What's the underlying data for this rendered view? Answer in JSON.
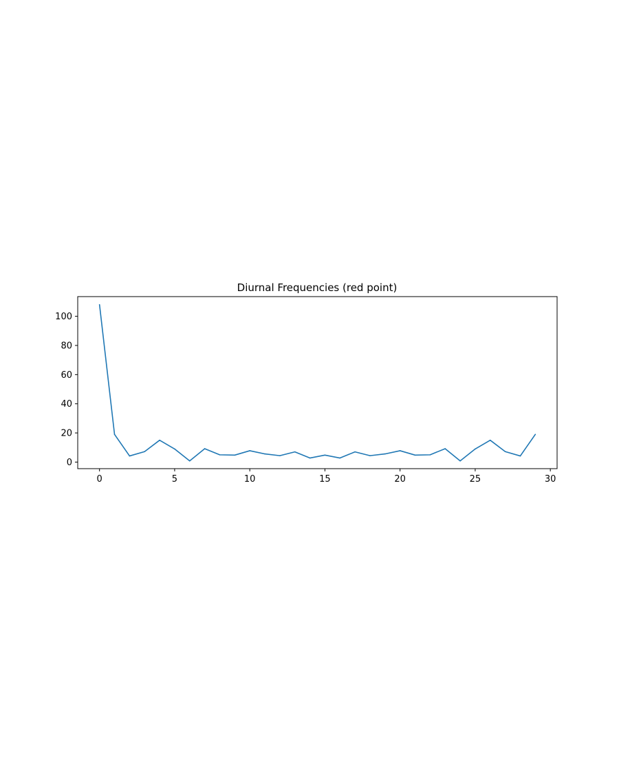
{
  "chart_data": {
    "type": "line",
    "title": "Diurnal Frequencies (red point)",
    "xlabel": "",
    "ylabel": "",
    "xlim": [
      -1.45,
      30.45
    ],
    "ylim": [
      -4.5,
      113.5
    ],
    "xticks": [
      0,
      5,
      10,
      15,
      20,
      25,
      30
    ],
    "yticks": [
      0,
      20,
      40,
      60,
      80,
      100
    ],
    "grid": false,
    "legend": "none",
    "series": [
      {
        "color": "#1f77b4",
        "x": [
          0,
          1,
          2,
          3,
          4,
          5,
          6,
          7,
          8,
          9,
          10,
          11,
          12,
          13,
          14,
          15,
          16,
          17,
          18,
          19,
          20,
          21,
          22,
          23,
          24,
          25,
          26,
          27,
          28,
          29
        ],
        "values": [
          108,
          19,
          4.2,
          7.2,
          15,
          9,
          0.8,
          9.2,
          5,
          4.8,
          7.8,
          5.6,
          4.4,
          7,
          2.8,
          4.8,
          2.8,
          7,
          4.4,
          5.6,
          7.8,
          4.8,
          5,
          9.2,
          0.8,
          9,
          15,
          7.2,
          4.2,
          19
        ]
      }
    ]
  }
}
